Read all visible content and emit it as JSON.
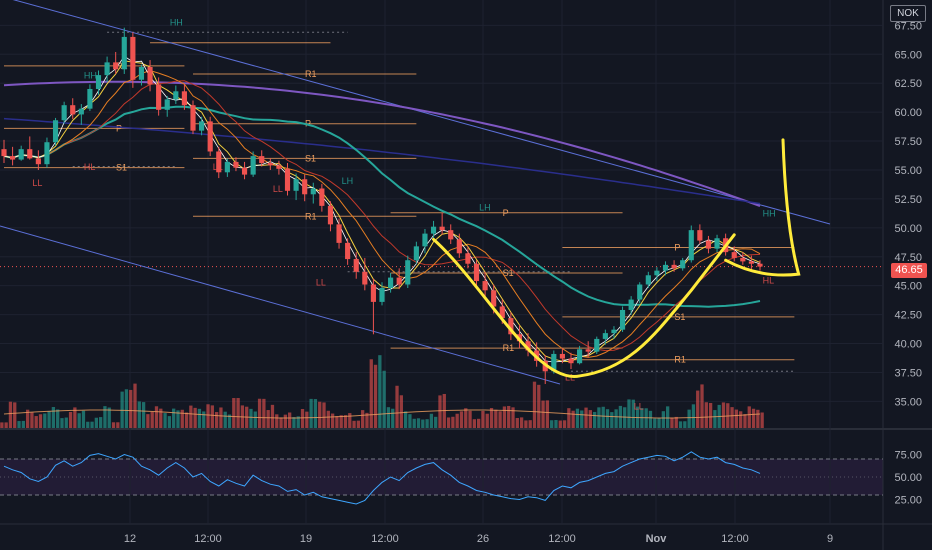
{
  "symbol": "NOK",
  "last_price": "46.65",
  "colors": {
    "background": "#131722",
    "up": "#26a69a",
    "down": "#ef5350",
    "annotation": "#ffeb3b",
    "channel": "#5b6fd6",
    "ma_purple": "#7e57c2",
    "ma_blue": "#2a2e8c",
    "ma_teal": "#26a69a",
    "pivot": "#f0a060",
    "rsi_line": "#3ea6ff"
  },
  "chart_data": {
    "type": "candlestick",
    "price_axis": {
      "ticks": [
        "67.50",
        "65.00",
        "62.50",
        "60.00",
        "57.50",
        "55.00",
        "52.50",
        "50.00",
        "47.50",
        "45.00",
        "42.50",
        "40.00",
        "37.50",
        "35.00"
      ],
      "range": [
        32.7,
        69.0
      ]
    },
    "time_axis": {
      "ticks": [
        "12",
        "12:00",
        "19",
        "12:00",
        "26",
        "12:00",
        "Nov",
        "12:00",
        "9"
      ]
    },
    "rsi_axis": {
      "ticks": [
        "75.00",
        "50.00",
        "25.00"
      ],
      "range": [
        0,
        100
      ],
      "bands": [
        70,
        30
      ]
    },
    "pivot_labels": [
      "R1",
      "P",
      "S1",
      "R1",
      "P",
      "S1",
      "R1",
      "P",
      "S1",
      "R1",
      "P",
      "S1"
    ],
    "swing_labels": [
      "HH",
      "HL",
      "LL",
      "HH",
      "LL",
      "LL",
      "LH",
      "LL",
      "LH",
      "LL",
      "LL",
      "HH",
      "HL"
    ],
    "candles": [
      [
        56.8,
        57.6,
        55.6,
        56.2
      ],
      [
        56.2,
        57.0,
        55.4,
        55.9
      ],
      [
        55.9,
        57.1,
        55.8,
        56.8
      ],
      [
        56.8,
        57.9,
        55.9,
        56.0
      ],
      [
        56.0,
        56.7,
        55.0,
        55.5
      ],
      [
        55.5,
        57.8,
        55.2,
        57.4
      ],
      [
        57.4,
        59.5,
        57.1,
        59.3
      ],
      [
        59.3,
        60.9,
        59.0,
        60.6
      ],
      [
        60.6,
        61.2,
        59.4,
        59.8
      ],
      [
        59.8,
        60.7,
        58.9,
        60.3
      ],
      [
        60.3,
        62.4,
        60.1,
        62.0
      ],
      [
        62.0,
        63.6,
        61.5,
        63.2
      ],
      [
        63.2,
        64.8,
        62.6,
        64.3
      ],
      [
        64.3,
        65.2,
        63.3,
        63.7
      ],
      [
        63.7,
        67.3,
        63.3,
        66.5
      ],
      [
        66.5,
        66.9,
        62.1,
        62.8
      ],
      [
        62.8,
        64.1,
        62.3,
        63.9
      ],
      [
        63.9,
        64.5,
        61.8,
        62.4
      ],
      [
        62.4,
        63.0,
        59.7,
        60.2
      ],
      [
        60.2,
        61.4,
        59.6,
        61.1
      ],
      [
        61.1,
        62.3,
        60.7,
        61.8
      ],
      [
        61.8,
        62.4,
        60.2,
        60.6
      ],
      [
        60.6,
        61.0,
        58.1,
        58.4
      ],
      [
        58.4,
        59.6,
        58.0,
        59.2
      ],
      [
        59.2,
        59.6,
        56.2,
        56.6
      ],
      [
        56.6,
        57.0,
        54.3,
        54.8
      ],
      [
        54.8,
        56.0,
        54.4,
        55.7
      ],
      [
        55.7,
        56.1,
        54.9,
        55.2
      ],
      [
        55.2,
        55.7,
        54.2,
        54.6
      ],
      [
        54.6,
        56.6,
        54.4,
        56.2
      ],
      [
        56.2,
        56.7,
        55.3,
        55.6
      ],
      [
        55.6,
        56.0,
        55.0,
        55.4
      ],
      [
        55.4,
        55.8,
        54.6,
        55.1
      ],
      [
        55.1,
        55.6,
        52.8,
        53.2
      ],
      [
        53.2,
        54.7,
        52.4,
        54.2
      ],
      [
        54.2,
        54.6,
        52.3,
        52.9
      ],
      [
        52.9,
        53.9,
        52.1,
        53.4
      ],
      [
        53.4,
        53.8,
        51.4,
        51.9
      ],
      [
        51.9,
        52.3,
        49.7,
        50.3
      ],
      [
        50.3,
        50.8,
        48.2,
        48.7
      ],
      [
        48.7,
        49.1,
        46.8,
        47.3
      ],
      [
        47.3,
        47.9,
        45.6,
        46.2
      ],
      [
        46.2,
        47.4,
        44.6,
        45.1
      ],
      [
        45.1,
        45.6,
        40.8,
        43.6
      ],
      [
        43.6,
        45.3,
        43.3,
        44.8
      ],
      [
        44.8,
        46.1,
        44.4,
        45.7
      ],
      [
        45.7,
        46.5,
        44.7,
        45.1
      ],
      [
        45.1,
        47.6,
        44.8,
        47.2
      ],
      [
        47.2,
        48.8,
        46.9,
        48.4
      ],
      [
        48.4,
        49.9,
        47.8,
        49.5
      ],
      [
        49.5,
        50.6,
        48.9,
        50.1
      ],
      [
        50.1,
        51.3,
        49.4,
        49.8
      ],
      [
        49.8,
        50.3,
        48.6,
        49.0
      ],
      [
        49.0,
        49.5,
        47.4,
        47.8
      ],
      [
        47.8,
        48.4,
        46.5,
        46.9
      ],
      [
        46.9,
        47.2,
        44.9,
        45.4
      ],
      [
        45.4,
        46.2,
        44.1,
        44.6
      ],
      [
        44.6,
        45.1,
        42.6,
        43.2
      ],
      [
        43.2,
        43.8,
        41.7,
        42.2
      ],
      [
        42.2,
        42.7,
        40.3,
        40.8
      ],
      [
        40.8,
        41.6,
        39.6,
        40.2
      ],
      [
        40.2,
        40.9,
        38.9,
        39.4
      ],
      [
        39.4,
        40.1,
        38.0,
        38.5
      ],
      [
        38.5,
        39.0,
        36.5,
        37.6
      ],
      [
        37.6,
        39.4,
        37.4,
        39.1
      ],
      [
        39.1,
        39.6,
        38.3,
        38.7
      ],
      [
        38.7,
        39.2,
        37.8,
        38.3
      ],
      [
        38.3,
        39.8,
        38.2,
        39.5
      ],
      [
        39.5,
        40.2,
        38.8,
        39.3
      ],
      [
        39.3,
        40.6,
        39.1,
        40.4
      ],
      [
        40.4,
        41.2,
        39.9,
        40.9
      ],
      [
        40.9,
        41.5,
        40.4,
        41.2
      ],
      [
        41.2,
        43.2,
        41.0,
        42.9
      ],
      [
        42.9,
        44.1,
        42.5,
        43.8
      ],
      [
        43.8,
        45.3,
        43.5,
        45.1
      ],
      [
        45.1,
        46.2,
        44.8,
        45.9
      ],
      [
        45.9,
        46.6,
        45.4,
        46.3
      ],
      [
        46.3,
        47.1,
        45.9,
        46.8
      ],
      [
        46.8,
        47.2,
        46.2,
        46.5
      ],
      [
        46.5,
        47.4,
        46.3,
        47.2
      ],
      [
        47.2,
        50.2,
        47.0,
        49.8
      ],
      [
        49.8,
        50.3,
        48.6,
        48.9
      ],
      [
        48.9,
        49.3,
        47.8,
        48.2
      ],
      [
        48.2,
        49.4,
        47.9,
        49.1
      ],
      [
        49.1,
        49.5,
        47.6,
        47.9
      ],
      [
        47.9,
        48.4,
        47.1,
        47.4
      ],
      [
        47.4,
        47.9,
        46.8,
        47.1
      ],
      [
        47.1,
        47.6,
        46.4,
        46.9
      ],
      [
        46.9,
        47.2,
        46.3,
        46.65
      ]
    ],
    "rsi": [
      62,
      58,
      55,
      48,
      45,
      50,
      63,
      68,
      62,
      66,
      74,
      76,
      73,
      70,
      75,
      72,
      62,
      58,
      52,
      60,
      66,
      60,
      50,
      54,
      45,
      40,
      47,
      43,
      40,
      52,
      46,
      42,
      40,
      34,
      36,
      30,
      33,
      28,
      26,
      24,
      22,
      20,
      24,
      35,
      44,
      50,
      46,
      55,
      60,
      64,
      66,
      58,
      52,
      44,
      40,
      35,
      33,
      30,
      28,
      26,
      25,
      28,
      27,
      24,
      35,
      40,
      38,
      44,
      46,
      50,
      54,
      56,
      62,
      66,
      70,
      72,
      74,
      73,
      68,
      72,
      78,
      72,
      70,
      72,
      66,
      64,
      60,
      58,
      54
    ]
  }
}
